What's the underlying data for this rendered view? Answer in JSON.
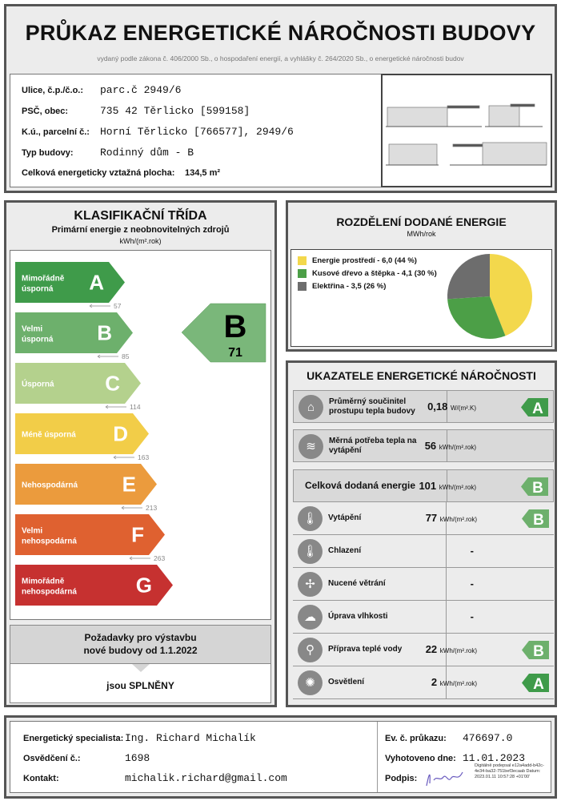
{
  "header": {
    "title": "PRŮKAZ ENERGETICKÉ NÁROČNOSTI BUDOVY",
    "subtitle": "vydaný podle zákona č. 406/2000 Sb., o hospodaření energií, a vyhlášky č. 264/2020 Sb., o energetické náročnosti budov"
  },
  "building": {
    "street_label": "Ulice, č.p./č.o.:",
    "street": "parc.č 2949/6",
    "psc_label": "PSČ, obec:",
    "psc": "735 42 Těrlicko [599158]",
    "ku_label": "K.ú., parcelní č.:",
    "ku": "Horní Těrlicko [766577], 2949/6",
    "type_label": "Typ budovy:",
    "type": "Rodinný dům - B",
    "area_label": "Celková energeticky vztažná plocha:",
    "area": "134,5 m²"
  },
  "classification": {
    "title": "KLASIFIKAČNÍ TŘÍDA",
    "subtitle": "Primární energie z neobnovitelných zdrojů",
    "unit": "kWh/(m².rok)",
    "classes": [
      {
        "letter": "A",
        "label": "Mimořádně úsporná",
        "color": "#3f9b4a",
        "threshold": "57"
      },
      {
        "letter": "B",
        "label": "Velmi úsporná",
        "color": "#6db06c",
        "threshold": "85"
      },
      {
        "letter": "C",
        "label": "Úsporná",
        "color": "#b4d18d",
        "threshold": "114"
      },
      {
        "letter": "D",
        "label": "Méně úsporná",
        "color": "#f2cd48",
        "threshold": "163"
      },
      {
        "letter": "E",
        "label": "Nehospodárná",
        "color": "#eb9b3d",
        "threshold": "213"
      },
      {
        "letter": "F",
        "label": "Velmi nehospodárná",
        "color": "#df6130",
        "threshold": "263"
      },
      {
        "letter": "G",
        "label": "Mimořádně nehospodárná",
        "color": "#c63130",
        "threshold": ""
      }
    ],
    "result": {
      "letter": "B",
      "value": "71",
      "color": "#7ab77a"
    },
    "requirement": {
      "line1": "Požadavky pro výstavbu",
      "line2": "nové budovy od 1.1.2022",
      "status": "jsou SPLNĚNY"
    }
  },
  "chart_data": {
    "type": "pie",
    "title": "ROZDĚLENÍ DODANÉ ENERGIE",
    "unit": "MWh/rok",
    "legend_position": "left",
    "slices": [
      {
        "label": "Energie prostředí - 6,0 (44 %)",
        "value": 6.0,
        "percent": 44,
        "color": "#f3d84c"
      },
      {
        "label": "Kusové dřevo a štěpka - 4,1 (30 %)",
        "value": 4.1,
        "percent": 30,
        "color": "#4c9f47"
      },
      {
        "label": "Elektřina - 3,5 (26 %)",
        "value": 3.5,
        "percent": 26,
        "color": "#6d6d6d"
      }
    ]
  },
  "indicators": {
    "title": "UKAZATELE ENERGETICKÉ NÁROČNOSTI",
    "rows": [
      {
        "icon": "house-icon",
        "glyph": "⌂",
        "name": "Průměrný součinitel prostupu tepla budovy",
        "value": "0,18",
        "unit": "W/(m².K)",
        "class": "A",
        "color": "#3f9b4a"
      },
      {
        "icon": "heat-demand-icon",
        "glyph": "≋",
        "name": "Měrná potřeba tepla na vytápění",
        "value": "56",
        "unit": "kWh/(m².rok)",
        "class": "",
        "color": ""
      },
      {
        "icon": "",
        "glyph": "",
        "name": "Celková dodaná energie",
        "value": "101",
        "unit": "kWh/(m².rok)",
        "class": "B",
        "color": "#6db06c"
      },
      {
        "icon": "heating-thermometer-icon",
        "glyph": "🌡",
        "name": "Vytápění",
        "value": "77",
        "unit": "kWh/(m².rok)",
        "class": "B",
        "color": "#6db06c"
      },
      {
        "icon": "cooling-thermometer-icon",
        "glyph": "🌡",
        "name": "Chlazení",
        "value": "-",
        "unit": "",
        "class": "",
        "color": ""
      },
      {
        "icon": "fan-icon",
        "glyph": "✢",
        "name": "Nucené větrání",
        "value": "-",
        "unit": "",
        "class": "",
        "color": ""
      },
      {
        "icon": "humidity-icon",
        "glyph": "☁",
        "name": "Úprava vlhkosti",
        "value": "-",
        "unit": "",
        "class": "",
        "color": ""
      },
      {
        "icon": "faucet-icon",
        "glyph": "⚲",
        "name": "Příprava teplé vody",
        "value": "22",
        "unit": "kWh/(m².rok)",
        "class": "B",
        "color": "#6db06c"
      },
      {
        "icon": "light-bulb-icon",
        "glyph": "✺",
        "name": "Osvětlení",
        "value": "2",
        "unit": "kWh/(m².rok)",
        "class": "A",
        "color": "#3f9b4a"
      }
    ]
  },
  "footer": {
    "specialist_label": "Energetický specialista:",
    "specialist": "Ing. Richard Michalík",
    "cert_label": "Osvědčení č.:",
    "cert": "1698",
    "contact_label": "Kontakt:",
    "contact": "michalik.richard@gmail.com",
    "ev_label": "Ev. č. průkazu:",
    "ev": "476697.0",
    "date_label": "Vyhotoveno dne:",
    "date": "11.01.2023",
    "sign_label": "Podpis:",
    "digital_sign": "Digitálně podepsal e12a4add-b42c-4e34-ba32-751bef3ecaab Datum: 2023.01.11 10:57:28 +01'00'"
  }
}
